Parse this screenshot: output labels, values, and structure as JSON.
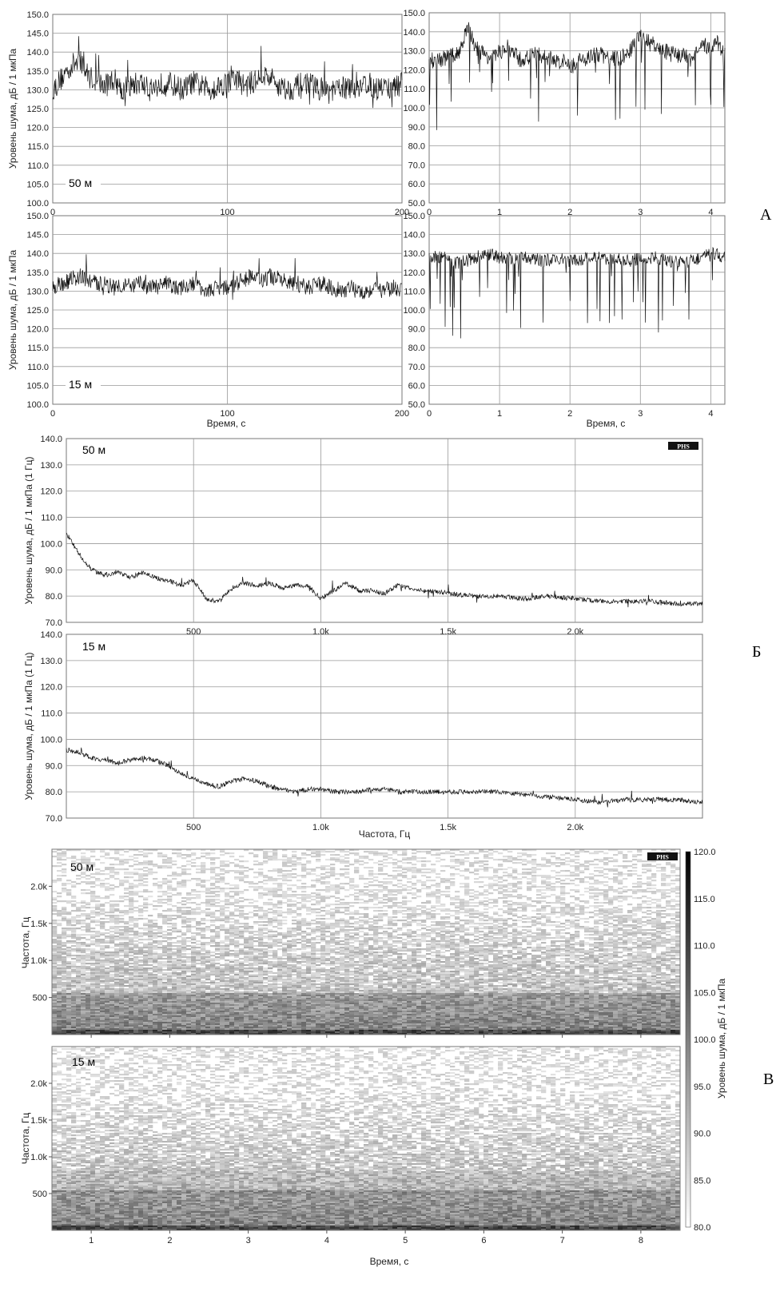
{
  "panel_labels": [
    "А",
    "Б",
    "В"
  ],
  "badge": "PHS",
  "chart_data": [
    {
      "type": "line",
      "id": "A-50-long",
      "annotation": "50 м",
      "xlabel": "",
      "ylabel": "Уровень шума, дБ / 1 мкПа",
      "xlim": [
        0,
        200
      ],
      "ylim": [
        100,
        150
      ],
      "x_ticks": [
        0,
        100,
        200
      ],
      "y_ticks": [
        "100.0",
        "105.0",
        "110.0",
        "115.0",
        "120.0",
        "125.0",
        "130.0",
        "135.0",
        "140.0",
        "145.0",
        "150.0"
      ],
      "grid": true,
      "series": [
        {
          "x": [
            0,
            5,
            10,
            15,
            20,
            25,
            30,
            35,
            40,
            45,
            50,
            55,
            60,
            65,
            70,
            75,
            80,
            85,
            90,
            95,
            100,
            105,
            110,
            115,
            120,
            125,
            130,
            135,
            140,
            145,
            150,
            155,
            160,
            165,
            170,
            175,
            180,
            185,
            190,
            195,
            200
          ],
          "y": [
            130,
            133,
            136,
            138,
            134,
            132,
            131,
            133,
            130,
            131,
            132,
            130,
            131,
            132,
            131,
            130,
            132,
            131,
            130,
            131,
            132,
            133,
            131,
            132,
            134,
            133,
            131,
            130,
            131,
            132,
            131,
            130,
            129,
            131,
            130,
            131,
            132,
            130,
            131,
            130,
            132
          ]
        }
      ]
    },
    {
      "type": "line",
      "id": "A-50-short",
      "annotation": "",
      "xlabel": "",
      "ylabel": "",
      "xlim": [
        0,
        4.2
      ],
      "ylim": [
        50,
        150
      ],
      "x_ticks": [
        0,
        1,
        2,
        3,
        4
      ],
      "y_ticks": [
        "50.0",
        "60.0",
        "70.0",
        "80.0",
        "90.0",
        "100.0",
        "110.0",
        "120.0",
        "130.0",
        "140.0",
        "150.0"
      ],
      "grid": true,
      "series": [
        {
          "x": [
            0,
            0.2,
            0.4,
            0.55,
            0.7,
            0.9,
            1.1,
            1.3,
            1.5,
            1.7,
            1.9,
            2.0,
            2.2,
            2.4,
            2.6,
            2.8,
            3.0,
            3.1,
            3.3,
            3.5,
            3.7,
            3.9,
            4.1,
            4.2
          ],
          "y": [
            125,
            126,
            128,
            142,
            130,
            126,
            132,
            125,
            128,
            126,
            124,
            122,
            126,
            128,
            126,
            127,
            138,
            135,
            130,
            128,
            126,
            132,
            134,
            128
          ]
        }
      ]
    },
    {
      "type": "line",
      "id": "A-15-long",
      "annotation": "15 м",
      "xlabel": "Время, с",
      "ylabel": "Уровень шума, дБ / 1 мкПа",
      "xlim": [
        0,
        200
      ],
      "ylim": [
        100,
        150
      ],
      "x_ticks": [
        0,
        100,
        200
      ],
      "y_ticks": [
        "100.0",
        "105.0",
        "110.0",
        "115.0",
        "120.0",
        "125.0",
        "130.0",
        "135.0",
        "140.0",
        "145.0",
        "150.0"
      ],
      "grid": true,
      "series": [
        {
          "x": [
            0,
            5,
            10,
            15,
            20,
            25,
            30,
            35,
            40,
            45,
            50,
            55,
            60,
            65,
            70,
            75,
            80,
            85,
            90,
            95,
            100,
            105,
            110,
            115,
            120,
            125,
            130,
            135,
            140,
            145,
            150,
            155,
            160,
            165,
            170,
            175,
            180,
            185,
            190,
            195,
            200
          ],
          "y": [
            131,
            132,
            133,
            134,
            133,
            132,
            132,
            131,
            132,
            131,
            132,
            131,
            131,
            132,
            131,
            131,
            132,
            131,
            130,
            131,
            131,
            132,
            133,
            134,
            133,
            134,
            133,
            132,
            132,
            131,
            131,
            132,
            131,
            130,
            131,
            130,
            130,
            131,
            130,
            131,
            130
          ]
        }
      ]
    },
    {
      "type": "line",
      "id": "A-15-short",
      "annotation": "",
      "xlabel": "Время, с",
      "ylabel": "",
      "xlim": [
        0,
        4.2
      ],
      "ylim": [
        50,
        150
      ],
      "x_ticks": [
        0,
        1,
        2,
        3,
        4
      ],
      "y_ticks": [
        "50.0",
        "60.0",
        "70.0",
        "80.0",
        "90.0",
        "100.0",
        "110.0",
        "120.0",
        "130.0",
        "140.0",
        "150.0"
      ],
      "grid": true,
      "series": [
        {
          "x": [
            0,
            0.2,
            0.4,
            0.6,
            0.8,
            1.0,
            1.2,
            1.4,
            1.6,
            1.8,
            2.0,
            2.2,
            2.4,
            2.6,
            2.8,
            3.0,
            3.2,
            3.4,
            3.6,
            3.8,
            4.0,
            4.2
          ],
          "y": [
            128,
            128,
            125,
            127,
            130,
            128,
            127,
            128,
            126,
            127,
            126,
            127,
            128,
            127,
            126,
            127,
            128,
            126,
            125,
            127,
            130,
            128
          ]
        }
      ]
    },
    {
      "type": "line",
      "id": "B-50",
      "annotation": "50 м",
      "xlabel": "",
      "ylabel": "Уровень шума, дБ / 1 мкПа (1 Гц)",
      "xlim": [
        0,
        2500
      ],
      "ylim": [
        70,
        140
      ],
      "x_ticks": [
        500,
        1000,
        1500,
        2000
      ],
      "x_tick_labels": [
        "500",
        "1.0k",
        "1.5k",
        "2.0k"
      ],
      "y_ticks": [
        "70.0",
        "80.0",
        "90.0",
        "100.0",
        "110.0",
        "120.0",
        "130.0",
        "140.0"
      ],
      "grid": true,
      "series": [
        {
          "x": [
            0,
            50,
            100,
            150,
            200,
            250,
            300,
            350,
            400,
            450,
            500,
            550,
            600,
            650,
            700,
            750,
            800,
            850,
            900,
            950,
            1000,
            1050,
            1100,
            1150,
            1200,
            1250,
            1300,
            1350,
            1400,
            1450,
            1500,
            1600,
            1700,
            1800,
            1900,
            2000,
            2100,
            2200,
            2300,
            2400,
            2500
          ],
          "y": [
            104,
            96,
            90,
            88,
            89,
            87,
            89,
            87,
            86,
            84,
            86,
            79,
            78,
            83,
            85,
            84,
            85,
            83,
            84,
            84,
            79,
            82,
            85,
            82,
            82,
            81,
            84,
            83,
            82,
            82,
            81,
            80,
            80,
            79,
            80,
            79,
            78,
            78,
            78,
            77,
            77
          ]
        }
      ]
    },
    {
      "type": "line",
      "id": "B-15",
      "annotation": "15 м",
      "xlabel": "Частота, Гц",
      "ylabel": "Уровень шума, дБ / 1 мкПа (1 Гц)",
      "xlim": [
        0,
        2500
      ],
      "ylim": [
        70,
        140
      ],
      "x_ticks": [
        500,
        1000,
        1500,
        2000
      ],
      "x_tick_labels": [
        "500",
        "1.0k",
        "1.5k",
        "2.0k"
      ],
      "y_ticks": [
        "70.0",
        "80.0",
        "90.0",
        "100.0",
        "110.0",
        "120.0",
        "130.0",
        "140.0"
      ],
      "grid": true,
      "series": [
        {
          "x": [
            0,
            50,
            100,
            150,
            200,
            250,
            300,
            350,
            400,
            450,
            500,
            550,
            600,
            650,
            700,
            750,
            800,
            850,
            900,
            950,
            1000,
            1050,
            1100,
            1150,
            1200,
            1250,
            1300,
            1350,
            1400,
            1450,
            1500,
            1600,
            1700,
            1800,
            1900,
            2000,
            2100,
            2200,
            2300,
            2400,
            2500
          ],
          "y": [
            96,
            95,
            93,
            92,
            91,
            92,
            93,
            92,
            90,
            87,
            85,
            83,
            82,
            84,
            85,
            84,
            82,
            81,
            80,
            81,
            81,
            80,
            80,
            80,
            81,
            81,
            80,
            80,
            80,
            80,
            80,
            80,
            80,
            79,
            78,
            77,
            76,
            77,
            77,
            77,
            76
          ]
        }
      ]
    },
    {
      "type": "heatmap",
      "id": "C-50",
      "annotation": "50 м",
      "xlabel": "",
      "ylabel": "Частота, Гц",
      "xlim": [
        0.5,
        8.5
      ],
      "ylim": [
        0,
        2500
      ],
      "y_ticks": [
        500,
        1000,
        1500,
        2000
      ],
      "y_tick_labels": [
        "500",
        "1.0k",
        "1.5k",
        "2.0k"
      ],
      "x_ticks": [
        1,
        2,
        3,
        4,
        5,
        6,
        7,
        8
      ]
    },
    {
      "type": "heatmap",
      "id": "C-15",
      "annotation": "15 м",
      "xlabel": "Время, с",
      "ylabel": "Частота, Гц",
      "xlim": [
        0.5,
        8.5
      ],
      "ylim": [
        0,
        2500
      ],
      "y_ticks": [
        500,
        1000,
        1500,
        2000
      ],
      "y_tick_labels": [
        "500",
        "1.0k",
        "1.5k",
        "2.0k"
      ],
      "x_ticks": [
        1,
        2,
        3,
        4,
        5,
        6,
        7,
        8
      ]
    },
    {
      "type": "colorbar",
      "id": "C-colorbar",
      "label": "Уровень шума, дБ / 1 мкПа",
      "range": [
        80,
        120
      ],
      "ticks": [
        "80.0",
        "85.0",
        "90.0",
        "95.0",
        "100.0",
        "105.0",
        "110.0",
        "115.0",
        "120.0"
      ]
    }
  ]
}
